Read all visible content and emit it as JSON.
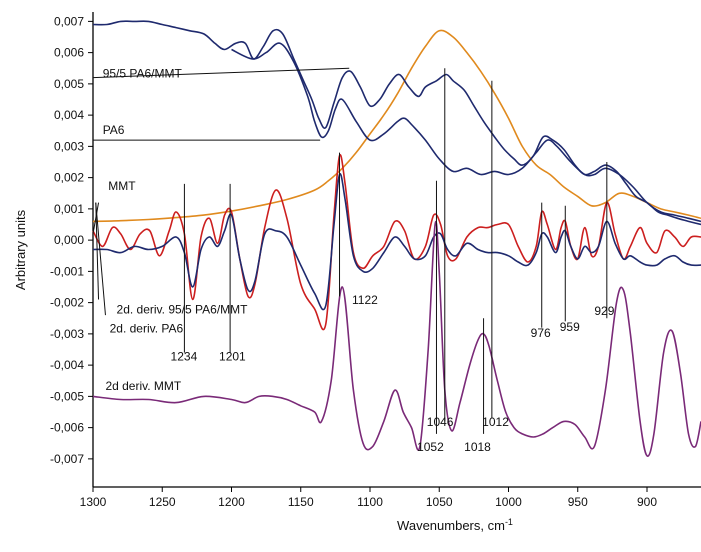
{
  "chart_data": {
    "type": "line",
    "xlabel": "Wavenumbers, cm",
    "xlabel_sup": "-1",
    "ylabel": "Arbitrary units",
    "xlim": [
      1300,
      861
    ],
    "ylim": [
      -0.0079,
      0.0073
    ],
    "x_reversed": true,
    "grid": false,
    "legend": "none",
    "x_ticks": [
      1300,
      1250,
      1200,
      1150,
      1100,
      1050,
      1000,
      950,
      900
    ],
    "x_tick_labels": [
      "1300",
      "1250",
      "1200",
      "1150",
      "1100",
      "1050",
      "1000",
      "950",
      "900"
    ],
    "y_ticks": [
      0.007,
      0.006,
      0.005,
      0.004,
      0.003,
      0.002,
      0.001,
      0.0,
      -0.001,
      -0.002,
      -0.003,
      -0.004,
      -0.005,
      -0.006,
      -0.007
    ],
    "y_tick_labels": [
      "0,007",
      "0,006",
      "0,005",
      "0,004",
      "0,003",
      "0,002",
      "0,001",
      "0,000",
      "-0,001",
      "-0,002",
      "-0,003",
      "-0,004",
      "-0,005",
      "-0,006",
      "-0,007"
    ],
    "series": [
      {
        "key": "mmt",
        "color": "#e08a1e",
        "x": [
          1300,
          1280,
          1260,
          1240,
          1220,
          1200,
          1180,
          1160,
          1140,
          1130,
          1120,
          1110,
          1100,
          1090,
          1080,
          1070,
          1060,
          1050,
          1040,
          1030,
          1020,
          1010,
          1000,
          990,
          980,
          970,
          960,
          950,
          940,
          930,
          920,
          910,
          900,
          890,
          880,
          870,
          861
        ],
        "y": [
          0.0006,
          0.00062,
          0.00066,
          0.00072,
          0.0008,
          0.00093,
          0.0011,
          0.0013,
          0.0016,
          0.0019,
          0.0023,
          0.0028,
          0.0034,
          0.004,
          0.0047,
          0.0055,
          0.0062,
          0.0067,
          0.0065,
          0.006,
          0.0054,
          0.0047,
          0.0039,
          0.003,
          0.0024,
          0.0021,
          0.0017,
          0.0014,
          0.0011,
          0.0012,
          0.0015,
          0.0014,
          0.0012,
          0.001,
          0.0009,
          0.0008,
          0.0007
        ]
      },
      {
        "key": "pa6-mmt",
        "color": "#1f2a6e",
        "x": [
          1300,
          1290,
          1280,
          1270,
          1260,
          1250,
          1240,
          1230,
          1220,
          1212,
          1205,
          1197,
          1190,
          1184,
          1177,
          1170,
          1163,
          1155,
          1148,
          1142,
          1137,
          1132,
          1126,
          1120,
          1114,
          1107,
          1100,
          1093,
          1086,
          1079,
          1072,
          1065,
          1060,
          1052,
          1045,
          1040,
          1032,
          1025,
          1018,
          1010,
          1003,
          996,
          990,
          982,
          975,
          968,
          960,
          952,
          945,
          938,
          930,
          922,
          915,
          908,
          900,
          892,
          885,
          878,
          870,
          861
        ],
        "y": [
          0.0069,
          0.0069,
          0.007,
          0.007,
          0.007,
          0.0069,
          0.0068,
          0.0067,
          0.0066,
          0.0063,
          0.0061,
          0.0063,
          0.0063,
          0.0058,
          0.0062,
          0.0067,
          0.0066,
          0.0058,
          0.0051,
          0.0045,
          0.0039,
          0.0036,
          0.0044,
          0.0052,
          0.0054,
          0.0049,
          0.0043,
          0.0045,
          0.005,
          0.0053,
          0.0049,
          0.0046,
          0.0049,
          0.0051,
          0.0053,
          0.0051,
          0.0048,
          0.0043,
          0.0038,
          0.0033,
          0.0029,
          0.0026,
          0.0024,
          0.0027,
          0.0033,
          0.0032,
          0.0029,
          0.0024,
          0.0021,
          0.0022,
          0.0024,
          0.0022,
          0.0018,
          0.0014,
          0.0012,
          0.0009,
          0.0008,
          0.0007,
          0.0006,
          0.0005
        ]
      },
      {
        "key": "pa6",
        "color": "#1f2a6e",
        "x": [
          1200,
          1185,
          1175,
          1165,
          1155,
          1145,
          1140,
          1135,
          1130,
          1125,
          1120,
          1110,
          1100,
          1090,
          1080,
          1075,
          1070,
          1060,
          1050,
          1040,
          1030,
          1020,
          1010,
          1000,
          990,
          980,
          972,
          965,
          955,
          945,
          938,
          930,
          920,
          910,
          900,
          890,
          880,
          870,
          861
        ],
        "y": [
          0.0061,
          0.0058,
          0.006,
          0.0063,
          0.0057,
          0.0046,
          0.0038,
          0.0033,
          0.0035,
          0.0042,
          0.0045,
          0.0038,
          0.0032,
          0.0034,
          0.0038,
          0.0039,
          0.0037,
          0.0032,
          0.0026,
          0.0022,
          0.0023,
          0.0021,
          0.0022,
          0.0021,
          0.0023,
          0.0028,
          0.0032,
          0.003,
          0.0025,
          0.0021,
          0.0021,
          0.0023,
          0.0021,
          0.0017,
          0.0012,
          0.0009,
          0.0008,
          0.0007,
          0.0006
        ]
      },
      {
        "key": "d2-pa6-mmt",
        "color": "#cc1f1f",
        "x": [
          1300,
          1293,
          1286,
          1280,
          1273,
          1266,
          1259,
          1252,
          1245,
          1240,
          1234,
          1228,
          1222,
          1216,
          1210,
          1205,
          1200,
          1194,
          1188,
          1183,
          1176,
          1168,
          1160,
          1150,
          1140,
          1132,
          1126,
          1122,
          1118,
          1112,
          1105,
          1098,
          1090,
          1082,
          1075,
          1068,
          1060,
          1054,
          1049,
          1044,
          1038,
          1030,
          1022,
          1015,
          1008,
          1000,
          993,
          986,
          980,
          976,
          972,
          966,
          962,
          959,
          955,
          950,
          945,
          940,
          935,
          929,
          923,
          917,
          912,
          905,
          900,
          893,
          887,
          880,
          874,
          868,
          861
        ],
        "y": [
          0.0003,
          -0.0002,
          0.0004,
          0.0002,
          -0.0003,
          0.0002,
          0.0003,
          -0.0005,
          0.0003,
          0.0009,
          0.0002,
          -0.0019,
          0.0001,
          0.0007,
          -0.0001,
          0.0008,
          0.0009,
          -0.0006,
          -0.0018,
          -0.0014,
          0.0004,
          0.0016,
          0.0007,
          -0.0014,
          -0.0022,
          -0.0027,
          0.0008,
          0.0027,
          0.0018,
          -0.0004,
          -0.0009,
          -0.0005,
          -0.0002,
          0.0006,
          0.0003,
          -0.0006,
          -0.0002,
          0.0008,
          0.0005,
          -0.0005,
          -0.0006,
          0.0001,
          0.0004,
          0.0004,
          0.0005,
          0.0005,
          -0.0002,
          -0.0007,
          -0.0002,
          0.0009,
          0.0005,
          -0.0003,
          0.0004,
          0.0006,
          -0.0002,
          -0.0006,
          0.0004,
          -0.0005,
          -0.0002,
          0.0012,
          0.0002,
          -0.0006,
          -0.0002,
          0.0004,
          -0.0001,
          -0.0004,
          0.0003,
          0.0001,
          -0.0002,
          0.0001,
          0.0001
        ]
      },
      {
        "key": "d2-pa6",
        "color": "#1f2a6e",
        "x": [
          1300,
          1290,
          1280,
          1270,
          1260,
          1250,
          1240,
          1234,
          1228,
          1222,
          1216,
          1210,
          1205,
          1200,
          1194,
          1188,
          1183,
          1176,
          1168,
          1160,
          1150,
          1140,
          1132,
          1126,
          1122,
          1118,
          1112,
          1105,
          1098,
          1090,
          1082,
          1075,
          1068,
          1060,
          1054,
          1049,
          1044,
          1038,
          1030,
          1022,
          1015,
          1008,
          1000,
          993,
          986,
          980,
          976,
          972,
          966,
          962,
          959,
          955,
          950,
          945,
          940,
          935,
          929,
          923,
          917,
          912,
          905,
          900,
          893,
          887,
          880,
          874,
          868,
          861
        ],
        "y": [
          -0.0003,
          -0.0003,
          -0.0004,
          -0.0002,
          -0.0003,
          -0.0002,
          0.0001,
          -0.0004,
          -0.0015,
          -0.0003,
          0.0001,
          -0.0002,
          0.0003,
          0.0008,
          -0.0006,
          -0.0016,
          -0.0013,
          0.0002,
          0.0003,
          0.0001,
          -0.0008,
          -0.0017,
          -0.0021,
          0.0005,
          0.0021,
          0.0013,
          -0.0005,
          -0.001,
          -0.0009,
          -0.0004,
          0.0001,
          -0.0002,
          -0.0006,
          -0.0005,
          0.0001,
          0.0002,
          -0.0003,
          -0.0005,
          -0.0001,
          -0.0003,
          -0.0004,
          -0.0004,
          -0.0005,
          -0.0007,
          -0.0008,
          -0.0004,
          0.0002,
          0.0001,
          -0.0004,
          0.0001,
          0.0003,
          -0.0002,
          -0.0006,
          -0.0002,
          -0.0004,
          -0.0002,
          0.0006,
          -0.0001,
          -0.0006,
          -0.0005,
          -0.0007,
          -0.0008,
          -0.0008,
          -0.0006,
          -0.0005,
          -0.0007,
          -0.0008,
          -0.0008
        ]
      },
      {
        "key": "d2-mmt",
        "color": "#7a2a78",
        "x": [
          1300,
          1280,
          1260,
          1240,
          1220,
          1200,
          1190,
          1180,
          1170,
          1160,
          1150,
          1140,
          1135,
          1128,
          1120,
          1112,
          1105,
          1098,
          1090,
          1082,
          1076,
          1070,
          1064,
          1058,
          1053,
          1050,
          1046,
          1041,
          1035,
          1028,
          1022,
          1018,
          1014,
          1008,
          1002,
          996,
          990,
          982,
          975,
          968,
          960,
          952,
          945,
          938,
          930,
          922,
          917,
          912,
          905,
          900,
          895,
          888,
          882,
          876,
          870,
          865,
          861
        ],
        "y": [
          -0.005,
          -0.0051,
          -0.0051,
          -0.0052,
          -0.005,
          -0.0051,
          -0.0052,
          -0.005,
          -0.005,
          -0.0051,
          -0.0053,
          -0.0055,
          -0.0058,
          -0.0045,
          -0.0015,
          -0.0048,
          -0.0065,
          -0.0066,
          -0.0058,
          -0.0048,
          -0.0055,
          -0.006,
          -0.0066,
          -0.0035,
          0.0005,
          -0.001,
          -0.0048,
          -0.0061,
          -0.0052,
          -0.004,
          -0.0032,
          -0.003,
          -0.0034,
          -0.0045,
          -0.0055,
          -0.006,
          -0.0062,
          -0.0063,
          -0.0062,
          -0.006,
          -0.0058,
          -0.0059,
          -0.0063,
          -0.0066,
          -0.0048,
          -0.002,
          -0.0016,
          -0.003,
          -0.0058,
          -0.0069,
          -0.0062,
          -0.0036,
          -0.0029,
          -0.0042,
          -0.0062,
          -0.0066,
          -0.0058
        ]
      }
    ],
    "peak_lines": [
      {
        "x": 1234,
        "y_top": 0.0018,
        "y_bottom": -0.0036
      },
      {
        "x": 1201,
        "y_top": 0.0018,
        "y_bottom": -0.0036
      },
      {
        "x": 1122,
        "y_top": 0.0028,
        "y_bottom": -0.0018
      },
      {
        "x": 1052,
        "y_top": 0.0019,
        "y_bottom": -0.0062
      },
      {
        "x": 1046,
        "y_top": 0.0055,
        "y_bottom": -0.0058
      },
      {
        "x": 1018,
        "y_top": -0.0025,
        "y_bottom": -0.0062
      },
      {
        "x": 1012,
        "y_top": 0.0051,
        "y_bottom": -0.0057
      },
      {
        "x": 976,
        "y_top": 0.0012,
        "y_bottom": -0.0028
      },
      {
        "x": 959,
        "y_top": 0.0011,
        "y_bottom": -0.0026
      },
      {
        "x": 929,
        "y_top": 0.0025,
        "y_bottom": -0.0025
      }
    ],
    "annotations": [
      {
        "text": "95/5 PA6/MMT",
        "x": 1293,
        "y": 0.0052
      },
      {
        "text": "PA6",
        "x": 1293,
        "y": 0.0034
      },
      {
        "text": "MMT",
        "x": 1289,
        "y": 0.0016
      },
      {
        "text": "1122",
        "x": 1113,
        "y": -0.00205
      },
      {
        "text": "2d. deriv. 95/5 PA6/MMT",
        "x": 1283,
        "y": -0.00235
      },
      {
        "text": "2d. deriv. PA6",
        "x": 1288,
        "y": -0.00295
      },
      {
        "text": "1234",
        "x": 1244,
        "y": -0.00385
      },
      {
        "text": "1201",
        "x": 1209,
        "y": -0.00385
      },
      {
        "text": "976",
        "x": 984,
        "y": -0.0031
      },
      {
        "text": "959",
        "x": 963,
        "y": -0.0029
      },
      {
        "text": "929",
        "x": 938,
        "y": -0.0024
      },
      {
        "text": "2d deriv. MMT",
        "x": 1291,
        "y": -0.0048
      },
      {
        "text": "1046",
        "x": 1059,
        "y": -0.00595
      },
      {
        "text": "1012",
        "x": 1019,
        "y": -0.00595
      },
      {
        "text": "1052",
        "x": 1066,
        "y": -0.00675
      },
      {
        "text": "1018",
        "x": 1032,
        "y": -0.00675
      }
    ],
    "leaders": [
      {
        "from": [
          1300,
          0.0052
        ],
        "to": [
          1115,
          0.0055
        ]
      },
      {
        "from": [
          1300,
          0.0032
        ],
        "to": [
          1136,
          0.0032
        ]
      },
      {
        "from": [
          1296,
          0.0012
        ],
        "to": [
          1300,
          0.0002
        ]
      },
      {
        "from": [
          1298,
          0.0012
        ],
        "to": [
          1296,
          -0.0019
        ]
      },
      {
        "from": [
          1298,
          0.0012
        ],
        "to": [
          1291,
          -0.0024
        ]
      }
    ]
  }
}
